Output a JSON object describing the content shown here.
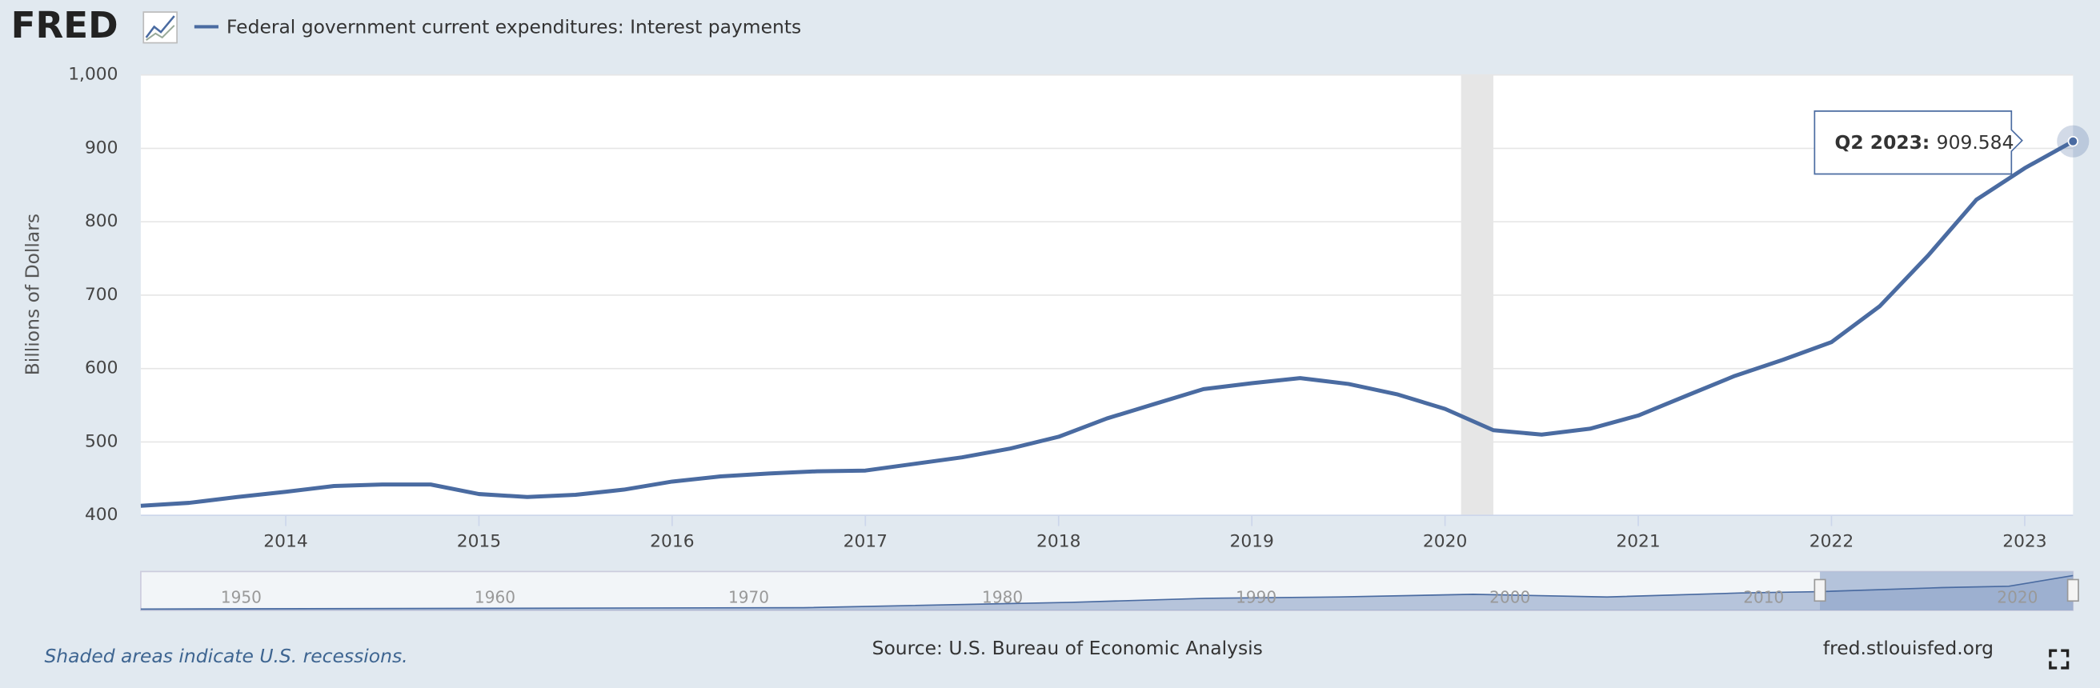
{
  "logo": "FRED",
  "chart_data": {
    "type": "line",
    "series": [
      {
        "name": "Federal government current expenditures: Interest payments",
        "color": "#4a6ba1",
        "values": [
          413,
          417,
          425,
          432,
          440,
          442,
          442,
          429,
          425,
          428,
          435,
          446,
          453,
          457,
          460,
          461,
          470,
          479,
          491,
          507,
          532,
          552,
          572,
          580,
          587,
          579,
          565,
          545,
          516,
          510,
          518,
          536,
          563,
          590,
          612,
          636,
          685,
          754,
          830,
          873,
          909.584
        ]
      }
    ],
    "x": [
      2013.25,
      2013.5,
      2013.75,
      2014,
      2014.25,
      2014.5,
      2014.75,
      2015,
      2015.25,
      2015.5,
      2015.75,
      2016,
      2016.25,
      2016.5,
      2016.75,
      2017,
      2017.25,
      2017.5,
      2017.75,
      2018,
      2018.25,
      2018.5,
      2018.75,
      2019,
      2019.25,
      2019.5,
      2019.75,
      2020,
      2020.25,
      2020.5,
      2020.75,
      2021,
      2021.25,
      2021.5,
      2021.75,
      2022,
      2022.25,
      2022.5,
      2022.75,
      2023,
      2023.25
    ],
    "xlim": [
      2013.25,
      2023.25
    ],
    "xticks": [
      2014,
      2015,
      2016,
      2017,
      2018,
      2019,
      2020,
      2021,
      2022,
      2023
    ],
    "ylim": [
      400,
      1000
    ],
    "yticks": [
      400,
      500,
      600,
      700,
      800,
      900,
      {
        "value": 1000,
        "label": "1,000"
      }
    ],
    "y_label": "Billions of Dollars",
    "recessions": [
      [
        2020.083,
        2020.25
      ]
    ],
    "grid": true,
    "tooltip": {
      "label": "Q2 2023:"
    },
    "navigator_xticks": [
      1950,
      1960,
      1970,
      1980,
      1990,
      2000,
      2010,
      2020
    ],
    "recession_note": "Shaded areas indicate U.S. recessions.",
    "source": "Source: U.S. Bureau of Economic Analysis",
    "site": "fred.stlouisfed.org"
  }
}
